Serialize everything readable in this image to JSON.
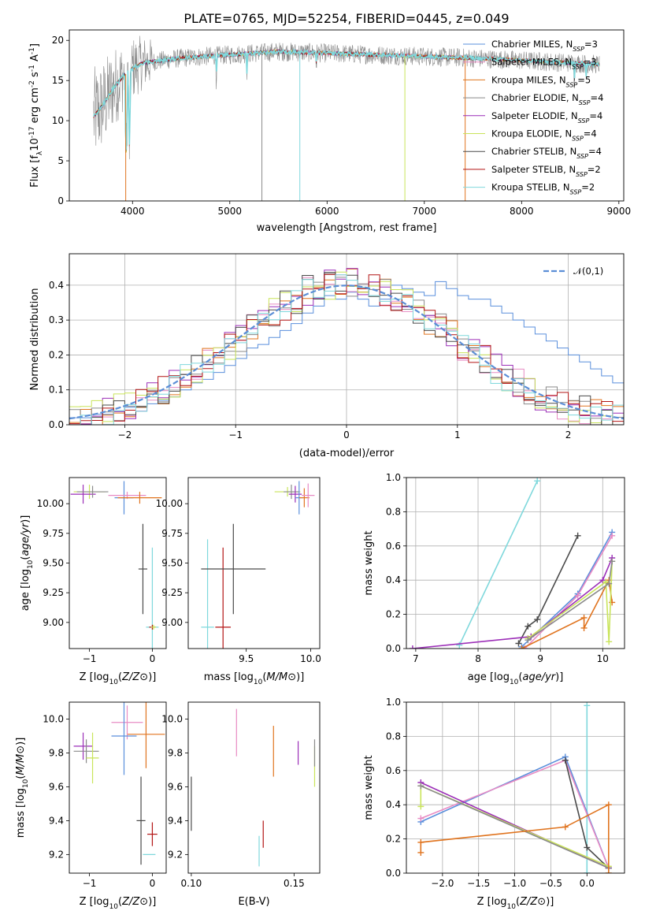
{
  "figure_title": "PLATE=0765, MJD=52254, FIBERID=0445, z=0.049",
  "colors": {
    "chabrier_miles": "#5a8fdc",
    "salpeter_miles": "#e88bc4",
    "kroupa_miles": "#e0741f",
    "chabrier_elodie": "#8a8a8a",
    "salpeter_elodie": "#9c2fb8",
    "kroupa_elodie": "#c9e45a",
    "chabrier_stelib": "#4a4a4a",
    "salpeter_stelib": "#b31515",
    "kroupa_stelib": "#7fd8dc",
    "normal": "#5b8ed6",
    "grid": "#b0b0b0"
  },
  "chart_data": [
    {
      "panel": "spectrum",
      "type": "line",
      "xlabel": "wavelength [Angstrom, rest frame]",
      "ylabel": "Flux [f$_{\\lambda}$10$^{-17}$ erg cm$^{-2}$ s$^{-1}$ A$^{-1}$]",
      "xlim": [
        3350,
        9050
      ],
      "ylim": [
        0,
        21.3
      ],
      "xticks": [
        4000,
        5000,
        6000,
        7000,
        8000,
        9000
      ],
      "yticks": [
        0,
        5,
        10,
        15,
        20
      ],
      "grid": false,
      "legend_position": "upper right",
      "legend": [
        "Chabrier MILES, N$_{SSP}$=3",
        "Salpeter MILES, N$_{SSP}$=3",
        "Kroupa MILES, N$_{SSP}$=5",
        "Chabrier ELODIE, N$_{SSP}$=4",
        "Salpeter ELODIE, N$_{SSP}$=4",
        "Kroupa ELODIE, N$_{SSP}$=4",
        "Chabrier STELIB, N$_{SSP}$=4",
        "Salpeter STELIB, N$_{SSP}$=2",
        "Kroupa STELIB, N$_{SSP}$=2"
      ],
      "continuum": {
        "x": [
          3600,
          3700,
          3800,
          3900,
          4000,
          4100,
          4300,
          4500,
          5000,
          5500,
          6000,
          6500,
          7000,
          7500,
          8000,
          8500,
          8800
        ],
        "y": [
          10.5,
          12,
          14,
          15.5,
          16.5,
          17.2,
          17.5,
          17.8,
          18.2,
          18.6,
          18.4,
          18.2,
          18,
          17.8,
          17.5,
          17.2,
          17.0
        ]
      },
      "absorption_features": [
        {
          "x": 3934,
          "y": 5.0
        },
        {
          "x": 3968,
          "y": 7.0
        },
        {
          "x": 4861,
          "y": 14.5
        },
        {
          "x": 5175,
          "y": 15.5
        },
        {
          "x": 5890,
          "y": 16.0
        },
        {
          "x": 8542,
          "y": 14.0
        },
        {
          "x": 8662,
          "y": 14.5
        }
      ],
      "noise_amplitude": {
        "blue": 5.0,
        "red": 1.2
      },
      "model_dropouts": [
        {
          "series": "kroupa_miles",
          "x": 3930
        },
        {
          "series": "kroupa_stelib",
          "x": 5720
        },
        {
          "series": "chabrier_elodie",
          "x": 5330
        },
        {
          "series": "kroupa_elodie",
          "x": 6800
        },
        {
          "series": "kroupa_miles",
          "x": 7420
        }
      ]
    },
    {
      "panel": "residual_histogram",
      "type": "histogram",
      "xlabel": "(data-model)/error",
      "ylabel": "Normed distribution",
      "xlim": [
        -2.5,
        2.5
      ],
      "ylim": [
        0,
        0.49
      ],
      "xticks": [
        -2,
        -1,
        0,
        1,
        2
      ],
      "yticks": [
        0.0,
        0.1,
        0.2,
        0.3,
        0.4
      ],
      "grid": true,
      "legend_position": "upper right",
      "legend": [
        "$\\mathcal{N}(0,1)$"
      ],
      "bin_width": 0.1,
      "bin_start": -2.5,
      "reference_curve": "normal(0,1) pdf",
      "series": [
        {
          "color_key": "chabrier_miles",
          "values": [
            0.02,
            0.02,
            0.03,
            0.03,
            0.04,
            0.05,
            0.05,
            0.06,
            0.07,
            0.08,
            0.1,
            0.12,
            0.13,
            0.15,
            0.17,
            0.19,
            0.22,
            0.23,
            0.25,
            0.27,
            0.29,
            0.32,
            0.34,
            0.37,
            0.36,
            0.38,
            0.36,
            0.34,
            0.36,
            0.4,
            0.39,
            0.38,
            0.37,
            0.41,
            0.39,
            0.37,
            0.36,
            0.36,
            0.34,
            0.32,
            0.3,
            0.28,
            0.26,
            0.24,
            0.22,
            0.2,
            0.18,
            0.16,
            0.14,
            0.12
          ]
        }
      ]
    },
    {
      "panel": "age_vs_Z",
      "type": "scatter",
      "xlabel": "Z [log$_{10}$($Z/Z_\\odot$)]",
      "ylabel": "age  [log$_{10}$($age/yr$)]",
      "xlim": [
        -1.32,
        0.22
      ],
      "ylim": [
        8.78,
        10.22
      ],
      "xticks": [
        -1,
        0
      ],
      "yticks": [
        9.0,
        9.25,
        9.5,
        9.75,
        10.0
      ],
      "grid": false,
      "points": [
        {
          "color_key": "kroupa_elodie",
          "x": -1.0,
          "y": 10.1,
          "xerr": 0.25,
          "yerr": 0.06
        },
        {
          "color_key": "salpeter_elodie",
          "x": -1.1,
          "y": 10.08,
          "xerr": 0.2,
          "yerr": 0.08
        },
        {
          "color_key": "chabrier_elodie",
          "x": -0.95,
          "y": 10.1,
          "xerr": 0.25,
          "yerr": 0.05
        },
        {
          "color_key": "chabrier_miles",
          "x": -0.45,
          "y": 10.05,
          "xerr": 0.15,
          "yerr": 0.14
        },
        {
          "color_key": "salpeter_miles",
          "x": -0.4,
          "y": 10.07,
          "xerr": 0.3,
          "yerr": 0.03
        },
        {
          "color_key": "kroupa_miles",
          "x": -0.2,
          "y": 10.05,
          "xerr": 0.35,
          "yerr": 0.05
        },
        {
          "color_key": "chabrier_stelib",
          "x": -0.15,
          "y": 9.45,
          "xerr": 0.07,
          "yerr": 0.38
        },
        {
          "color_key": "kroupa_stelib",
          "x": 0.0,
          "y": 8.96,
          "xerr": 0.1,
          "yerr": 0.67
        },
        {
          "color_key": "salpeter_stelib",
          "x": 0.0,
          "y": 8.96,
          "xerr": 0.05,
          "yerr": 0.02
        },
        {
          "color_key": "kroupa_elodie",
          "x": 0.02,
          "y": 8.96,
          "xerr": 0.04,
          "yerr": 0.02
        }
      ]
    },
    {
      "panel": "age_vs_mass",
      "type": "scatter",
      "xlabel": "mass [log$_{10}$($M/M_\\odot$)]",
      "ylabel": "",
      "xlim": [
        9.05,
        10.07
      ],
      "ylim": [
        8.78,
        10.22
      ],
      "xticks": [
        9.5,
        10.0
      ],
      "yticks": [
        9.0,
        9.25,
        9.5,
        9.75,
        10.0
      ],
      "grid": false,
      "points": [
        {
          "color_key": "kroupa_stelib",
          "x": 9.2,
          "y": 8.96,
          "xerr": 0.05,
          "yerr": 0.74
        },
        {
          "color_key": "salpeter_stelib",
          "x": 9.32,
          "y": 8.96,
          "xerr": 0.06,
          "yerr": 0.67
        },
        {
          "color_key": "chabrier_stelib",
          "x": 9.4,
          "y": 9.45,
          "xerr": 0.25,
          "yerr": 0.38
        },
        {
          "color_key": "kroupa_elodie",
          "x": 9.82,
          "y": 10.1,
          "xerr": 0.1,
          "yerr": 0.04
        },
        {
          "color_key": "chabrier_elodie",
          "x": 9.85,
          "y": 10.1,
          "xerr": 0.06,
          "yerr": 0.06
        },
        {
          "color_key": "salpeter_elodie",
          "x": 9.88,
          "y": 10.08,
          "xerr": 0.05,
          "yerr": 0.07
        },
        {
          "color_key": "chabrier_miles",
          "x": 9.91,
          "y": 10.05,
          "xerr": 0.03,
          "yerr": 0.14
        },
        {
          "color_key": "kroupa_miles",
          "x": 9.95,
          "y": 10.05,
          "xerr": 0.04,
          "yerr": 0.08
        },
        {
          "color_key": "salpeter_miles",
          "x": 9.98,
          "y": 10.07,
          "xerr": 0.05,
          "yerr": 0.1
        }
      ]
    },
    {
      "panel": "mass_weight_vs_age",
      "type": "line",
      "xlabel": "age  [log$_{10}$($age/yr$)]",
      "ylabel": "mass weight",
      "xlim": [
        6.85,
        10.35
      ],
      "ylim": [
        0,
        1
      ],
      "xticks": [
        7,
        8,
        9,
        10
      ],
      "yticks": [
        0.0,
        0.2,
        0.4,
        0.6,
        0.8,
        1.0
      ],
      "grid": true,
      "series": [
        {
          "color_key": "kroupa_stelib",
          "x": [
            7.7,
            8.95
          ],
          "y": [
            0.02,
            0.98
          ]
        },
        {
          "color_key": "chabrier_stelib",
          "x": [
            8.65,
            8.8,
            8.95,
            9.6
          ],
          "y": [
            0.03,
            0.13,
            0.17,
            0.66
          ]
        },
        {
          "color_key": "chabrier_miles",
          "x": [
            8.7,
            9.6,
            10.15
          ],
          "y": [
            0.01,
            0.32,
            0.68
          ]
        },
        {
          "color_key": "salpeter_miles",
          "x": [
            8.75,
            9.6,
            10.15
          ],
          "y": [
            0.0,
            0.31,
            0.66
          ]
        },
        {
          "color_key": "salpeter_elodie",
          "x": [
            6.95,
            8.85,
            10.0,
            10.15
          ],
          "y": [
            0.0,
            0.07,
            0.4,
            0.53
          ]
        },
        {
          "color_key": "kroupa_miles",
          "x": [
            8.7,
            9.7,
            9.7,
            10.1,
            10.15
          ],
          "y": [
            0.0,
            0.18,
            0.12,
            0.4,
            0.27
          ]
        },
        {
          "color_key": "kroupa_elodie",
          "x": [
            8.8,
            10.05,
            10.1,
            10.15
          ],
          "y": [
            0.06,
            0.39,
            0.04,
            0.51
          ]
        },
        {
          "color_key": "chabrier_elodie",
          "x": [
            8.8,
            10.1,
            10.15
          ],
          "y": [
            0.05,
            0.38,
            0.51
          ]
        }
      ]
    },
    {
      "panel": "mass_vs_Z",
      "type": "scatter",
      "xlabel": "Z [log$_{10}$($Z/Z_\\odot$)]",
      "ylabel": "mass [log$_{10}$($M/M_\\odot$)]",
      "xlim": [
        -1.32,
        0.22
      ],
      "ylim": [
        9.09,
        10.1
      ],
      "xticks": [
        -1,
        0
      ],
      "yticks": [
        9.2,
        9.4,
        9.6,
        9.8,
        10.0
      ],
      "grid": false,
      "points": [
        {
          "color_key": "kroupa_miles",
          "x": -0.1,
          "y": 9.91,
          "xerr": 0.3,
          "yerr": 0.2
        },
        {
          "color_key": "salpeter_miles",
          "x": -0.4,
          "y": 9.98,
          "xerr": 0.25,
          "yerr": 0.1
        },
        {
          "color_key": "chabrier_miles",
          "x": -0.45,
          "y": 9.9,
          "xerr": 0.2,
          "yerr": 0.23
        },
        {
          "color_key": "salpeter_elodie",
          "x": -1.1,
          "y": 9.84,
          "xerr": 0.15,
          "yerr": 0.08
        },
        {
          "color_key": "chabrier_elodie",
          "x": -1.05,
          "y": 9.81,
          "xerr": 0.2,
          "yerr": 0.07
        },
        {
          "color_key": "kroupa_elodie",
          "x": -0.95,
          "y": 9.77,
          "xerr": 0.1,
          "yerr": 0.15
        },
        {
          "color_key": "chabrier_stelib",
          "x": -0.18,
          "y": 9.4,
          "xerr": 0.07,
          "yerr": 0.26
        },
        {
          "color_key": "salpeter_stelib",
          "x": 0.0,
          "y": 9.32,
          "xerr": 0.08,
          "yerr": 0.07
        },
        {
          "color_key": "kroupa_stelib",
          "x": -0.05,
          "y": 9.2,
          "xerr": 0.1,
          "yerr": 0.0
        }
      ]
    },
    {
      "panel": "mass_vs_ebv",
      "type": "scatter",
      "xlabel": "E(B-V)",
      "ylabel": "",
      "xlim": [
        0.0985,
        0.1625
      ],
      "ylim": [
        9.09,
        10.1
      ],
      "xticks": [
        0.1,
        0.15
      ],
      "yticks": [
        9.2,
        9.4,
        9.6,
        9.8,
        10.0
      ],
      "grid": false,
      "points": [
        {
          "color_key": "chabrier_stelib",
          "x": 0.1,
          "y": 9.5,
          "xerr": 0.0,
          "yerr": 0.16
        },
        {
          "color_key": "salpeter_miles",
          "x": 0.122,
          "y": 9.92,
          "xerr": 0.0,
          "yerr": 0.14
        },
        {
          "color_key": "kroupa_stelib",
          "x": 0.133,
          "y": 9.22,
          "xerr": 0.0,
          "yerr": 0.09
        },
        {
          "color_key": "salpeter_stelib",
          "x": 0.135,
          "y": 9.32,
          "xerr": 0.0,
          "yerr": 0.08
        },
        {
          "color_key": "kroupa_miles",
          "x": 0.14,
          "y": 9.81,
          "xerr": 0.0,
          "yerr": 0.15
        },
        {
          "color_key": "salpeter_elodie",
          "x": 0.152,
          "y": 9.8,
          "xerr": 0.0,
          "yerr": 0.07
        },
        {
          "color_key": "kroupa_elodie",
          "x": 0.16,
          "y": 9.72,
          "xerr": 0.0,
          "yerr": 0.12
        },
        {
          "color_key": "chabrier_elodie",
          "x": 0.16,
          "y": 9.8,
          "xerr": 0.0,
          "yerr": 0.08
        }
      ]
    },
    {
      "panel": "mass_weight_vs_Z",
      "type": "line",
      "xlabel": "Z [log$_{10}$($Z/Z_\\odot$)]",
      "ylabel": "mass weight",
      "xlim": [
        -2.5,
        0.52
      ],
      "ylim": [
        0,
        1
      ],
      "xticks": [
        -2.0,
        -1.5,
        -1.0,
        -0.5,
        0.0
      ],
      "yticks": [
        0.0,
        0.2,
        0.4,
        0.6,
        0.8,
        1.0
      ],
      "grid": true,
      "series": [
        {
          "color_key": "kroupa_stelib",
          "x": [
            0.0,
            0.0
          ],
          "y": [
            0.0,
            0.98
          ]
        },
        {
          "color_key": "chabrier_miles",
          "x": [
            -2.3,
            -0.3,
            0.3
          ],
          "y": [
            0.3,
            0.68,
            0.03
          ]
        },
        {
          "color_key": "salpeter_miles",
          "x": [
            -2.3,
            -0.3,
            0.3
          ],
          "y": [
            0.32,
            0.66,
            0.03
          ]
        },
        {
          "color_key": "chabrier_stelib",
          "x": [
            -0.3,
            0.0,
            0.3
          ],
          "y": [
            0.66,
            0.15,
            0.03
          ]
        },
        {
          "color_key": "salpeter_elodie",
          "x": [
            -2.3,
            0.3,
            0.3
          ],
          "y": [
            0.53,
            0.03,
            0.03
          ]
        },
        {
          "color_key": "kroupa_elodie",
          "x": [
            -2.3,
            -2.3,
            0.3
          ],
          "y": [
            0.39,
            0.51,
            0.04
          ]
        },
        {
          "color_key": "chabrier_elodie",
          "x": [
            -2.3,
            0.3
          ],
          "y": [
            0.51,
            0.03
          ]
        },
        {
          "color_key": "kroupa_miles",
          "x": [
            -2.3,
            -2.3,
            -0.3,
            0.3,
            0.3
          ],
          "y": [
            0.12,
            0.18,
            0.27,
            0.4,
            0.0
          ]
        }
      ]
    }
  ]
}
